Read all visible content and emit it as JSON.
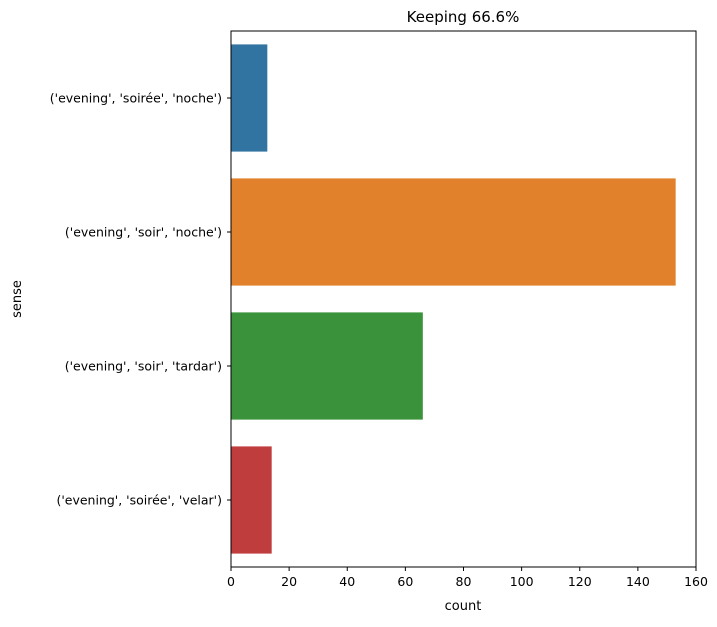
{
  "chart_data": {
    "type": "bar",
    "orientation": "horizontal",
    "title": "Keeping 66.6%",
    "xlabel": "count",
    "ylabel": "sense",
    "xlim": [
      0,
      160
    ],
    "xticks": [
      0,
      20,
      40,
      60,
      80,
      100,
      120,
      140,
      160
    ],
    "grid": false,
    "categories": [
      "('evening', 'soirée', 'noche')",
      "('evening', 'soir', 'noche')",
      "('evening', 'soir', 'tardar')",
      "('evening', 'soirée', 'velar')"
    ],
    "values": [
      12.5,
      153,
      66,
      14
    ],
    "colors": [
      "#3274a1",
      "#e1812c",
      "#3a923a",
      "#c03d3e"
    ]
  }
}
